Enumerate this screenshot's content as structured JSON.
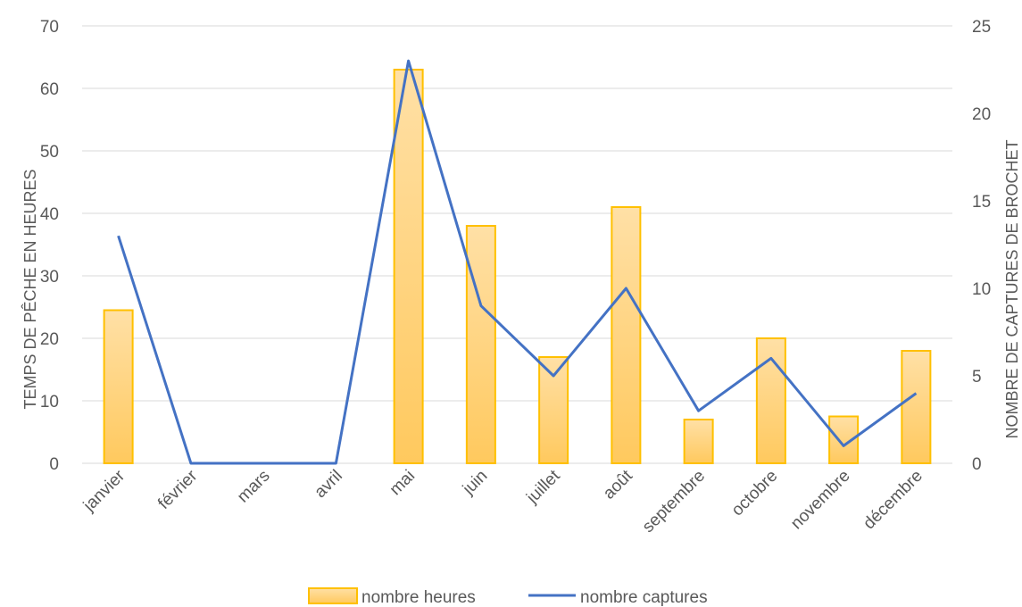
{
  "chart_data": {
    "type": "bar",
    "categories": [
      "janvier",
      "février",
      "mars",
      "avril",
      "mai",
      "juin",
      "juillet",
      "août",
      "septembre",
      "octobre",
      "novembre",
      "décembre"
    ],
    "series": [
      {
        "name": "nombre heures",
        "type": "bar",
        "axis": "left",
        "color": "#FFC000",
        "values": [
          24.5,
          0,
          0,
          0,
          63,
          38,
          17,
          41,
          7,
          20,
          7.5,
          18
        ]
      },
      {
        "name": "nombre captures",
        "type": "line",
        "axis": "right",
        "color": "#4472C4",
        "values": [
          13,
          0,
          0,
          0,
          23,
          9,
          5,
          10,
          3,
          6,
          1,
          4
        ]
      }
    ],
    "title": "",
    "ylabel": "TEMPS DE PÊCHE EN HEURES",
    "y2label": "NOMBRE DE CAPTURES DE BROCHET",
    "ylim": [
      0,
      70
    ],
    "yticks": [
      0,
      10,
      20,
      30,
      40,
      50,
      60,
      70
    ],
    "y2lim": [
      0,
      25
    ],
    "y2ticks": [
      0,
      5,
      10,
      15,
      20,
      25
    ],
    "grid": true,
    "legend": "bottom"
  }
}
